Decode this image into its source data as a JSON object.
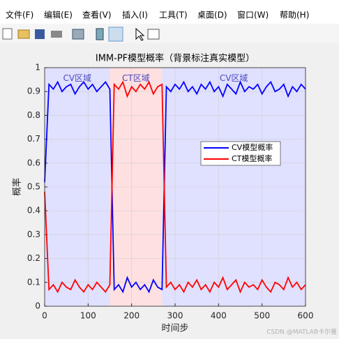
{
  "window": {
    "menu": [
      "文件(F)",
      "编辑(E)",
      "查看(V)",
      "插入(I)",
      "工具(T)",
      "桌面(D)",
      "窗口(W)",
      "帮助(H)"
    ],
    "watermark": "CSDN @MATLAB卡尔曼"
  },
  "chart_data": {
    "type": "line",
    "title": "IMM-PF模型概率（背景标注真实模型）",
    "xlabel": "时间步",
    "ylabel": "概率",
    "xlim": [
      0,
      600
    ],
    "ylim": [
      0,
      1
    ],
    "xticks": [
      0,
      100,
      200,
      300,
      400,
      500,
      600
    ],
    "yticks": [
      0,
      0.1,
      0.2,
      0.3,
      0.4,
      0.5,
      0.6,
      0.7,
      0.8,
      0.9,
      1
    ],
    "grid": true,
    "legend": "upper right",
    "regions": [
      {
        "label": "CV区域",
        "start": 0,
        "end": 150,
        "color": "#e0e0ff"
      },
      {
        "label": "CT区域",
        "start": 150,
        "end": 270,
        "color": "#ffe0e0"
      },
      {
        "label": "CV区域",
        "start": 270,
        "end": 600,
        "color": "#e0e0ff"
      }
    ],
    "x": [
      0,
      10,
      20,
      30,
      40,
      50,
      60,
      70,
      80,
      90,
      100,
      110,
      120,
      130,
      140,
      150,
      160,
      170,
      180,
      190,
      200,
      210,
      220,
      230,
      240,
      250,
      260,
      270,
      280,
      290,
      300,
      310,
      320,
      330,
      340,
      350,
      360,
      370,
      380,
      390,
      400,
      410,
      420,
      430,
      440,
      450,
      460,
      470,
      480,
      490,
      500,
      510,
      520,
      530,
      540,
      550,
      560,
      570,
      580,
      590,
      600
    ],
    "series": [
      {
        "name": "CV模型概率",
        "color": "#0000ff",
        "values": [
          0.52,
          0.93,
          0.91,
          0.94,
          0.9,
          0.92,
          0.93,
          0.89,
          0.92,
          0.94,
          0.91,
          0.93,
          0.9,
          0.92,
          0.94,
          0.91,
          0.07,
          0.09,
          0.06,
          0.12,
          0.08,
          0.1,
          0.07,
          0.09,
          0.06,
          0.11,
          0.08,
          0.07,
          0.92,
          0.9,
          0.93,
          0.91,
          0.94,
          0.9,
          0.92,
          0.89,
          0.93,
          0.91,
          0.94,
          0.9,
          0.92,
          0.88,
          0.93,
          0.91,
          0.89,
          0.94,
          0.9,
          0.92,
          0.91,
          0.93,
          0.89,
          0.92,
          0.94,
          0.9,
          0.91,
          0.93,
          0.88,
          0.92,
          0.9,
          0.93,
          0.91
        ]
      },
      {
        "name": "CT模型概率",
        "color": "#ff0000",
        "values": [
          0.48,
          0.07,
          0.09,
          0.06,
          0.1,
          0.08,
          0.07,
          0.11,
          0.08,
          0.06,
          0.09,
          0.07,
          0.1,
          0.08,
          0.06,
          0.09,
          0.93,
          0.91,
          0.94,
          0.88,
          0.92,
          0.9,
          0.93,
          0.91,
          0.94,
          0.89,
          0.92,
          0.93,
          0.08,
          0.1,
          0.07,
          0.09,
          0.06,
          0.1,
          0.08,
          0.11,
          0.07,
          0.09,
          0.06,
          0.1,
          0.08,
          0.12,
          0.07,
          0.09,
          0.11,
          0.06,
          0.1,
          0.08,
          0.09,
          0.07,
          0.11,
          0.08,
          0.06,
          0.1,
          0.09,
          0.07,
          0.12,
          0.08,
          0.1,
          0.07,
          0.09
        ]
      }
    ]
  }
}
